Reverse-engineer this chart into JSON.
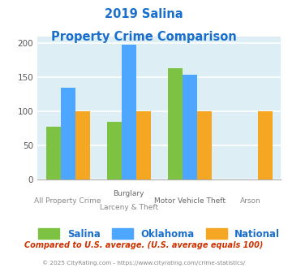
{
  "title_line1": "2019 Salina",
  "title_line2": "Property Crime Comparison",
  "title_color": "#1a6fcc",
  "series": {
    "Salina": [
      78,
      85,
      163,
      0
    ],
    "Oklahoma": [
      135,
      197,
      153,
      0
    ],
    "National": [
      100,
      100,
      100,
      100
    ]
  },
  "colors": {
    "Salina": "#7dc242",
    "Oklahoma": "#4da6ff",
    "National": "#f5a623"
  },
  "top_labels": [
    "",
    "Burglary",
    "Motor Vehicle Theft",
    ""
  ],
  "bot_labels": [
    "All Property Crime",
    "Larceny & Theft",
    "",
    "Arson"
  ],
  "ylim": [
    0,
    210
  ],
  "yticks": [
    0,
    50,
    100,
    150,
    200
  ],
  "background_color": "#ddeef5",
  "grid_color": "#ffffff",
  "footer_text": "Compared to U.S. average. (U.S. average equals 100)",
  "copyright_text": "© 2025 CityRating.com - https://www.cityrating.com/crime-statistics/",
  "footer_color": "#cc3300",
  "copyright_color": "#888888"
}
